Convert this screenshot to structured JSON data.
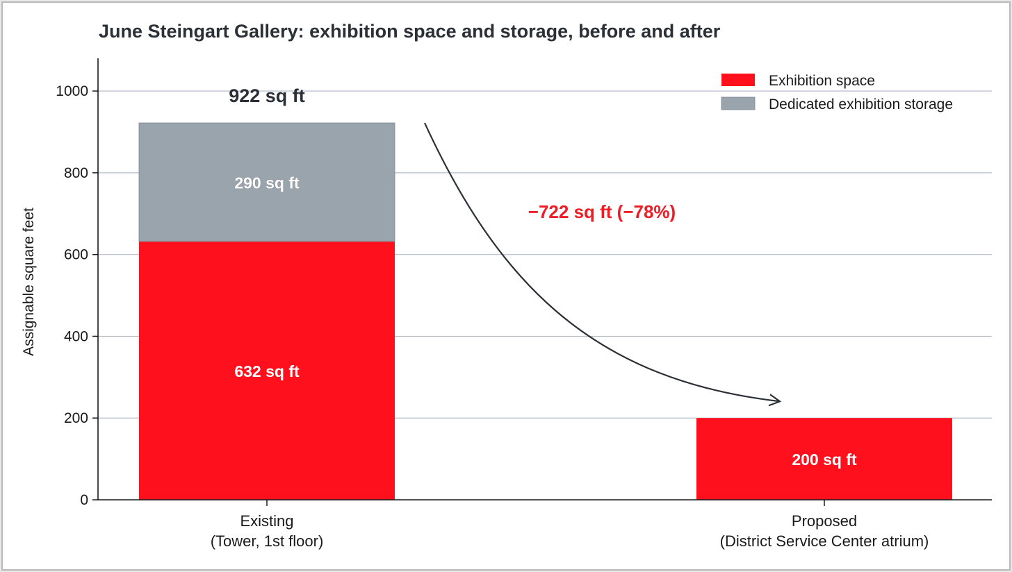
{
  "chart_data": {
    "type": "bar",
    "stacked": true,
    "title": "June Steingart Gallery: exhibition space and storage, before and after",
    "xlabel": "",
    "ylabel": "Assignable square feet",
    "ylim": [
      0,
      1080
    ],
    "yticks": [
      0,
      200,
      400,
      600,
      800,
      1000
    ],
    "grid": true,
    "legend_position": "top-right",
    "categories": [
      [
        "Existing",
        "(Tower, 1st floor)"
      ],
      [
        "Proposed",
        "(District Service Center atrium)"
      ]
    ],
    "series": [
      {
        "name": "Exhibition space",
        "color": "#ff101c",
        "values": [
          632,
          200
        ],
        "labels": [
          "632 sq ft",
          "200 sq ft"
        ]
      },
      {
        "name": "Dedicated exhibition storage",
        "color": "#9aa4ad",
        "values": [
          290,
          0
        ],
        "labels": [
          "290 sq ft",
          ""
        ]
      }
    ],
    "totals": [
      "922 sq ft",
      ""
    ],
    "annotation": {
      "text": "−722 sq ft  (−78%)",
      "from_category": 0,
      "to_category": 1,
      "color": "#ee1c24"
    }
  }
}
